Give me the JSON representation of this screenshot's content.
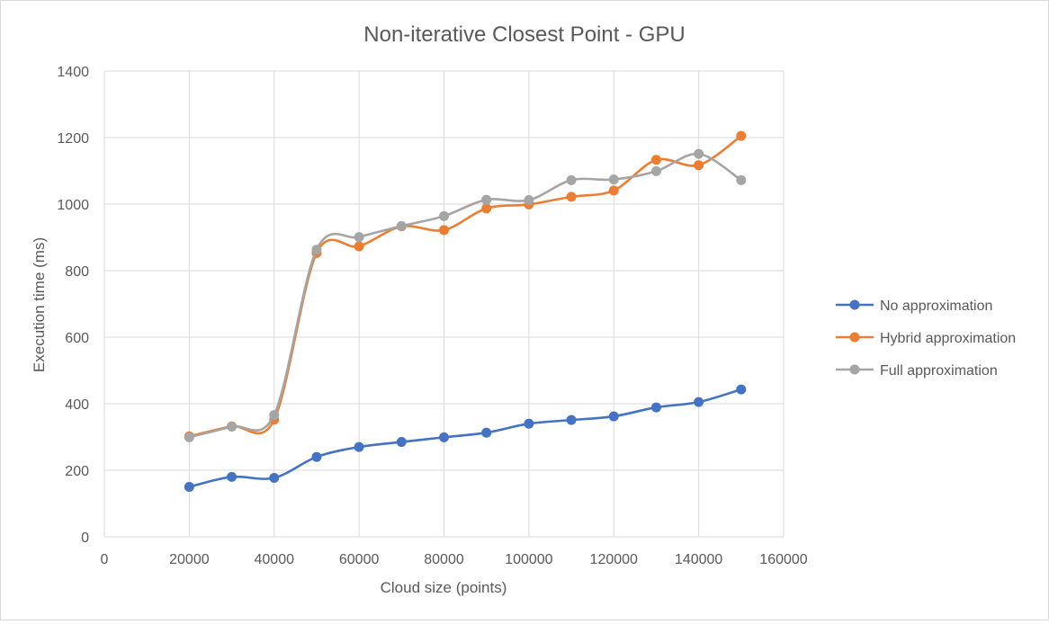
{
  "chart_data": {
    "type": "line",
    "title": "Non-iterative Closest Point - GPU",
    "xlabel": "Cloud size (points)",
    "ylabel": "Execution time (ms)",
    "xlim": [
      0,
      160000
    ],
    "ylim": [
      0,
      1400
    ],
    "x_ticks": [
      0,
      20000,
      40000,
      60000,
      80000,
      100000,
      120000,
      140000,
      160000
    ],
    "y_ticks": [
      0,
      200,
      400,
      600,
      800,
      1000,
      1200,
      1400
    ],
    "grid": true,
    "smooth": true,
    "legend_position": "right",
    "x": [
      20000,
      30000,
      40000,
      50000,
      60000,
      70000,
      80000,
      90000,
      100000,
      110000,
      120000,
      130000,
      140000,
      150000
    ],
    "series": [
      {
        "name": "No approximation",
        "color": "#4472C4",
        "values": [
          150,
          180,
          177,
          240,
          270,
          285,
          299,
          313,
          340,
          351,
          362,
          389,
          405,
          443
        ]
      },
      {
        "name": "Hybrid approximation",
        "color": "#ED7D31",
        "values": [
          302,
          332,
          352,
          853,
          873,
          933,
          922,
          987,
          999,
          1022,
          1041,
          1133,
          1117,
          1205
        ]
      },
      {
        "name": "Full approximation",
        "color": "#A5A5A5",
        "values": [
          299,
          331,
          366,
          863,
          901,
          934,
          964,
          1013,
          1012,
          1072,
          1074,
          1099,
          1151,
          1072
        ]
      }
    ]
  }
}
